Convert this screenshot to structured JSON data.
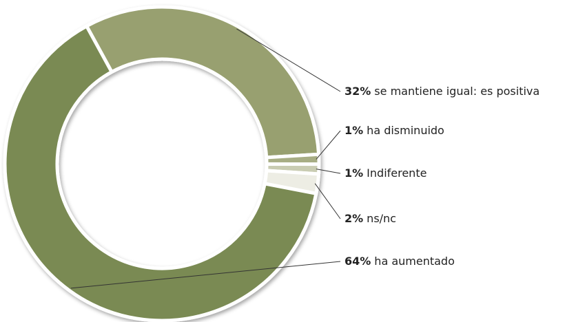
{
  "chart_data": {
    "type": "donut",
    "categories": [
      "se mantiene igual: es positiva",
      "ha disminuido",
      "Indiferente",
      "ns/nc",
      "ha aumentado"
    ],
    "values": [
      32,
      1,
      1,
      2,
      64
    ],
    "value_labels": [
      "32%",
      "1%",
      "1%",
      "2%",
      "64%"
    ],
    "colors": [
      "#98a070",
      "#a7ad84",
      "#c9ccb2",
      "#ededE4",
      "#7a8a52"
    ]
  }
}
